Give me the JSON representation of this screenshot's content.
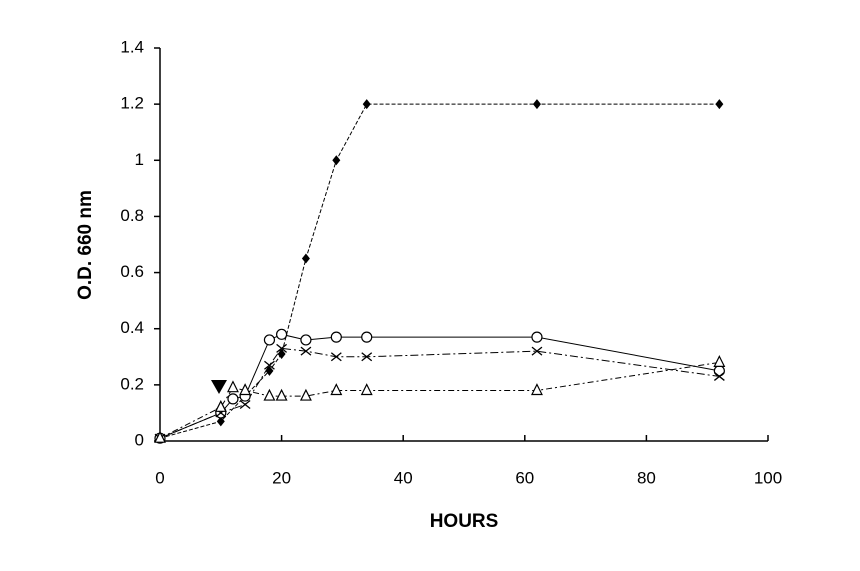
{
  "chart_data": {
    "type": "line",
    "xlabel": "HOURS",
    "ylabel": "O.D. 660 nm",
    "xlim": [
      0,
      100
    ],
    "xticks": [
      0,
      20,
      40,
      60,
      80,
      100
    ],
    "ylim": [
      0,
      1.4
    ],
    "yticks": [
      0,
      0.2,
      0.4,
      0.6,
      0.8,
      1,
      1.2,
      1.4
    ],
    "grid": false,
    "series": [
      {
        "marker": "diamond",
        "color": "#000000",
        "x": [
          0,
          10,
          18,
          20,
          24,
          29,
          34,
          62,
          92
        ],
        "values": [
          0.01,
          0.07,
          0.25,
          0.31,
          0.65,
          1.0,
          1.2,
          1.2,
          1.2
        ]
      },
      {
        "marker": "circle",
        "color": "#000000",
        "x": [
          0,
          10,
          12,
          14,
          18,
          20,
          24,
          29,
          34,
          62,
          92
        ],
        "values": [
          0.01,
          0.1,
          0.15,
          0.16,
          0.36,
          0.38,
          0.36,
          0.37,
          0.37,
          0.37,
          0.25
        ]
      },
      {
        "marker": "cross",
        "color": "#000000",
        "x": [
          0,
          10,
          14,
          18,
          20,
          24,
          29,
          34,
          62,
          92
        ],
        "values": [
          0.01,
          0.1,
          0.13,
          0.27,
          0.33,
          0.32,
          0.3,
          0.3,
          0.32,
          0.23
        ]
      },
      {
        "marker": "triangle",
        "color": "#000000",
        "x": [
          0,
          10,
          12,
          14,
          18,
          20,
          24,
          29,
          34,
          62,
          92
        ],
        "values": [
          0.01,
          0.12,
          0.19,
          0.18,
          0.16,
          0.16,
          0.16,
          0.18,
          0.18,
          0.18,
          0.28
        ]
      }
    ]
  }
}
